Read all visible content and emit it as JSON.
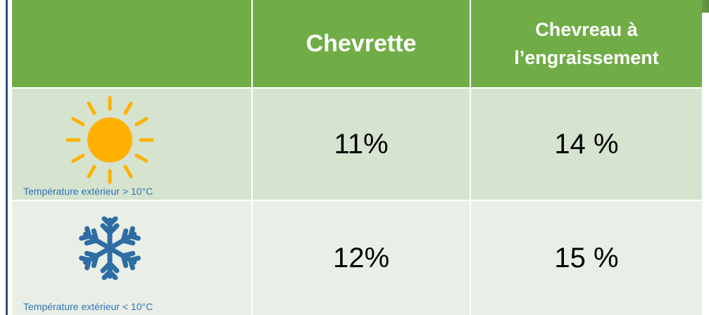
{
  "table": {
    "header": [
      "Chevrette",
      "Chevreau à l’engraissement"
    ],
    "rows": [
      {
        "label": "Température extérieur > 10°C",
        "values": [
          "11%",
          "14 %"
        ]
      },
      {
        "label": "Température extérieur < 10°C",
        "values": [
          "12%",
          "15 %"
        ]
      }
    ]
  }
}
